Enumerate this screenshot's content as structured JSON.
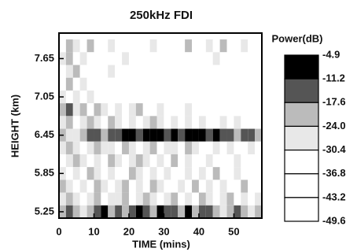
{
  "chart_data": {
    "type": "heatmap",
    "title": "250kHz FDI",
    "xlabel": "TIME (mins)",
    "ylabel": "HEIGHT (km)",
    "xlim": [
      0,
      58
    ],
    "xticks": [
      0,
      10,
      20,
      30,
      40,
      50
    ],
    "ylim": [
      5.15,
      8.05
    ],
    "yticks": [
      5.25,
      5.85,
      6.45,
      7.05,
      7.65
    ],
    "x": [
      1,
      3,
      5,
      7,
      9,
      11,
      13,
      15,
      17,
      19,
      21,
      23,
      25,
      27,
      29,
      31,
      33,
      35,
      37,
      39,
      41,
      43,
      45,
      47,
      49,
      51,
      53,
      55,
      57
    ],
    "y": [
      7.85,
      7.65,
      7.45,
      7.25,
      7.05,
      6.85,
      6.65,
      6.45,
      6.25,
      6.05,
      5.85,
      5.65,
      5.45,
      5.25
    ],
    "values": [
      [
        -46,
        -20,
        -27,
        -46,
        -20,
        -46,
        -46,
        -27,
        -46,
        -46,
        -46,
        -46,
        -46,
        -27,
        -46,
        -46,
        -46,
        -46,
        -20,
        -46,
        -46,
        -27,
        -46,
        -20,
        -46,
        -46,
        -27,
        -46,
        -46
      ],
      [
        -27,
        -20,
        -46,
        -27,
        -46,
        -46,
        -46,
        -46,
        -46,
        -27,
        -46,
        -46,
        -46,
        -46,
        -46,
        -46,
        -46,
        -46,
        -46,
        -46,
        -46,
        -46,
        -27,
        -46,
        -46,
        -46,
        -46,
        -46,
        -46
      ],
      [
        -46,
        -27,
        -20,
        -46,
        -46,
        -46,
        -46,
        -27,
        -46,
        -46,
        -46,
        -46,
        -46,
        -46,
        -46,
        -46,
        -46,
        -46,
        -46,
        -46,
        -46,
        -46,
        -46,
        -46,
        -46,
        -46,
        -46,
        -46,
        -46
      ],
      [
        -46,
        -20,
        -46,
        -27,
        -46,
        -46,
        -46,
        -46,
        -46,
        -46,
        -46,
        -46,
        -46,
        -46,
        -46,
        -46,
        -46,
        -46,
        -46,
        -46,
        -46,
        -46,
        -46,
        -46,
        -46,
        -46,
        -46,
        -46,
        -46
      ],
      [
        -27,
        -46,
        -27,
        -46,
        -27,
        -46,
        -46,
        -46,
        -46,
        -46,
        -46,
        -46,
        -46,
        -46,
        -46,
        -46,
        -46,
        -46,
        -46,
        -46,
        -46,
        -46,
        -46,
        -46,
        -46,
        -46,
        -46,
        -46,
        -46
      ],
      [
        -20,
        -14,
        -27,
        -20,
        -46,
        -20,
        -27,
        -46,
        -27,
        -46,
        -27,
        -20,
        -46,
        -46,
        -27,
        -46,
        -46,
        -46,
        -27,
        -46,
        -46,
        -46,
        -46,
        -46,
        -46,
        -46,
        -46,
        -46,
        -46
      ],
      [
        -27,
        -20,
        -46,
        -27,
        -20,
        -27,
        -46,
        -20,
        -27,
        -46,
        -27,
        -46,
        -27,
        -20,
        -27,
        -46,
        -27,
        -46,
        -27,
        -46,
        -27,
        -46,
        -46,
        -27,
        -46,
        -27,
        -46,
        -46,
        -46
      ],
      [
        -20,
        -27,
        -27,
        -20,
        -14,
        -14,
        -20,
        -14,
        -14,
        -8,
        -8,
        -14,
        -8,
        -8,
        -8,
        -14,
        -8,
        -14,
        -8,
        -8,
        -8,
        -14,
        -8,
        -14,
        -14,
        -20,
        -14,
        -14,
        -20
      ],
      [
        -27,
        -20,
        -27,
        -46,
        -27,
        -20,
        -27,
        -27,
        -46,
        -20,
        -27,
        -46,
        -27,
        -20,
        -46,
        -27,
        -27,
        -46,
        -20,
        -27,
        -46,
        -46,
        -27,
        -46,
        -27,
        -46,
        -46,
        -27,
        -46
      ],
      [
        -46,
        -27,
        -20,
        -27,
        -46,
        -27,
        -46,
        -20,
        -27,
        -46,
        -27,
        -20,
        -27,
        -46,
        -27,
        -46,
        -20,
        -46,
        -27,
        -46,
        -46,
        -27,
        -46,
        -46,
        -46,
        -27,
        -46,
        -46,
        -46
      ],
      [
        -27,
        -46,
        -27,
        -46,
        -20,
        -27,
        -46,
        -27,
        -46,
        -46,
        -20,
        -27,
        -46,
        -27,
        -46,
        -27,
        -46,
        -46,
        -27,
        -46,
        -27,
        -46,
        -20,
        -46,
        -46,
        -27,
        -46,
        -46,
        -46
      ],
      [
        -20,
        -27,
        -46,
        -27,
        -46,
        -20,
        -27,
        -46,
        -27,
        -20,
        -46,
        -27,
        -46,
        -20,
        -27,
        -46,
        -46,
        -27,
        -46,
        -20,
        -46,
        -27,
        -46,
        -27,
        -46,
        -46,
        -20,
        -46,
        -46
      ],
      [
        -27,
        -20,
        -27,
        -46,
        -27,
        -20,
        -46,
        -27,
        -27,
        -20,
        -46,
        -27,
        -20,
        -27,
        -46,
        -27,
        -20,
        -46,
        -27,
        -46,
        -20,
        -27,
        -46,
        -27,
        -20,
        -46,
        -27,
        -46,
        -27
      ],
      [
        -20,
        -14,
        -20,
        -27,
        -20,
        -14,
        -8,
        -20,
        -14,
        -20,
        -14,
        -8,
        -14,
        -20,
        -8,
        -14,
        -14,
        -20,
        -8,
        -20,
        -14,
        -14,
        -20,
        -27,
        -20,
        -14,
        -20,
        -27,
        -20
      ]
    ],
    "colorbar": {
      "title": "Power(dB)",
      "levels": [
        -4.9,
        -11.2,
        -17.6,
        {
          "value": -24,
          "label": "-24.0"
        },
        -30.4,
        -36.8,
        -43.2,
        -49.6
      ],
      "colors": [
        "#000000",
        "#555555",
        "#bbbbbb",
        "#e8e8e8",
        "#ffffff",
        "#ffffff",
        "#ffffff"
      ]
    }
  }
}
